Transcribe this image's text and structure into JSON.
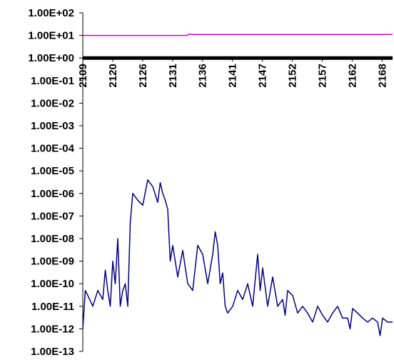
{
  "chart_data": {
    "type": "line",
    "title": "",
    "xlabel": "",
    "ylabel": "",
    "y_scale": "log",
    "ylim": [
      1e-13,
      100
    ],
    "y_tick_labels": [
      "1.00E+02",
      "1.00E+01",
      "1.00E+00",
      "1.00E-01",
      "1.00E-02",
      "1.00E-03",
      "1.00E-04",
      "1.00E-05",
      "1.00E-06",
      "1.00E-07",
      "1.00E-08",
      "1.00E-09",
      "1.00E-10",
      "1.00E-11",
      "1.00E-12",
      "1.00E-13"
    ],
    "x_tick_labels": [
      "2109",
      "2120",
      "2126",
      "2131",
      "2136",
      "2141",
      "2147",
      "2152",
      "2157",
      "2162",
      "2168"
    ],
    "x_axis_crosses_y": 1,
    "grid": false,
    "legend": "none",
    "series": [
      {
        "color": "#cc00cc",
        "x": [
          2109,
          2129.9,
          2130.1,
          2171
        ],
        "y": [
          10,
          10,
          11,
          11
        ]
      },
      {
        "color": "#000000",
        "style": "thick",
        "x": [
          2109,
          2171
        ],
        "y": [
          1,
          1
        ]
      },
      {
        "color": "#000080",
        "x": [
          2109,
          2109.5,
          2110,
          2111,
          2112,
          2113,
          2113.5,
          2114,
          2114.5,
          2115,
          2115.5,
          2116,
          2116.5,
          2117,
          2117.5,
          2118,
          2118.5,
          2119,
          2120,
          2121,
          2122,
          2123,
          2124,
          2124.5,
          2125,
          2125.5,
          2126,
          2126.5,
          2127,
          2128,
          2129,
          2130,
          2131,
          2132,
          2133,
          2134,
          2135,
          2135.5,
          2136,
          2136.5,
          2137,
          2137.5,
          2138,
          2139,
          2140,
          2141,
          2142,
          2143,
          2144,
          2144.5,
          2145,
          2146,
          2147,
          2148,
          2149,
          2149.5,
          2150,
          2151,
          2152,
          2153,
          2154,
          2155,
          2156,
          2157,
          2158,
          2159,
          2160,
          2161,
          2162,
          2162.5,
          2163,
          2164,
          2165,
          2166,
          2167,
          2168,
          2168.5,
          2169,
          2170,
          2171
        ],
        "y": [
          1e-12,
          5e-11,
          3e-11,
          1e-11,
          5e-11,
          2e-11,
          4e-10,
          5e-11,
          1e-11,
          1e-09,
          1e-10,
          1e-08,
          1e-11,
          5e-11,
          1e-10,
          1e-11,
          5e-08,
          1e-06,
          5e-07,
          3e-07,
          4e-06,
          2e-06,
          4e-07,
          3e-06,
          1e-06,
          5e-07,
          2e-07,
          1e-09,
          5e-09,
          2e-10,
          3e-09,
          1e-10,
          5e-11,
          5e-09,
          2e-09,
          1e-10,
          2e-09,
          2e-08,
          5e-09,
          1e-10,
          3e-10,
          1e-11,
          5e-12,
          1e-11,
          5e-11,
          2e-11,
          1e-10,
          1e-11,
          2e-09,
          5e-11,
          5e-10,
          1e-11,
          2e-10,
          1e-11,
          2e-11,
          4e-12,
          5e-11,
          3e-11,
          5e-12,
          1e-11,
          5e-12,
          2e-12,
          1e-11,
          4e-12,
          2e-12,
          5e-12,
          1e-11,
          3e-12,
          3e-12,
          1e-12,
          8e-12,
          5e-12,
          3e-12,
          2e-12,
          3e-12,
          2e-12,
          5e-13,
          3e-12,
          2e-12,
          2e-12
        ]
      }
    ]
  }
}
